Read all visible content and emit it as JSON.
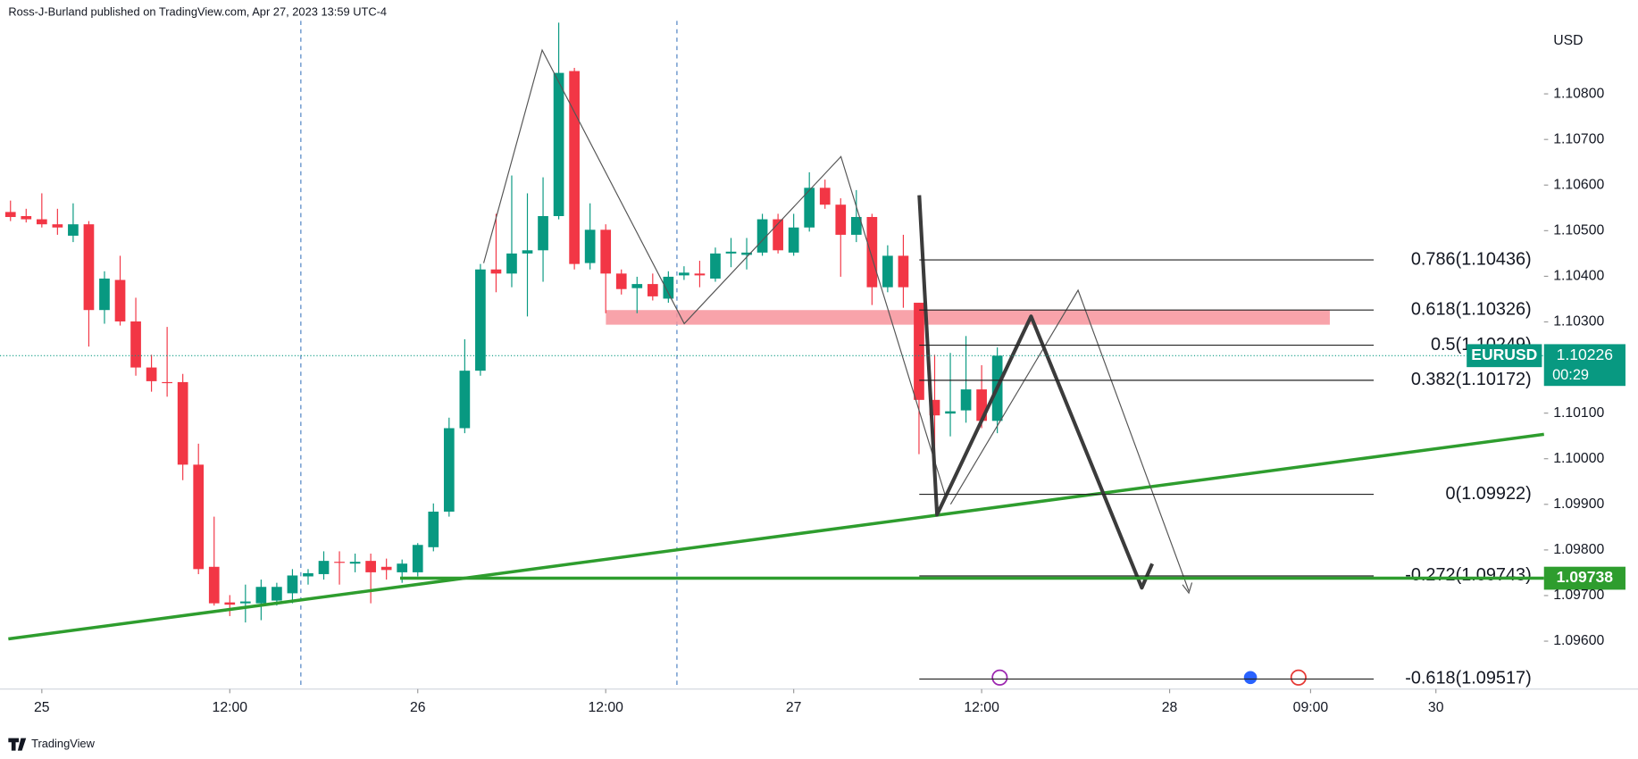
{
  "chart_data": {
    "type": "candlestick",
    "caption": "Ross-J-Burland published on TradingView.com, Apr 27, 2023 13:59 UTC-4",
    "currency": "USD",
    "symbol": "EURUSD",
    "last_price": 1.10226,
    "countdown": "00:29",
    "level_tag": 1.09738,
    "branding": "TradingView",
    "up_color": "#089981",
    "down_color": "#f23645",
    "level_color": "#2e9d2e",
    "grid": false,
    "x": [
      0,
      1,
      2,
      3,
      4,
      5,
      6,
      7,
      8,
      9,
      10,
      11,
      12,
      13,
      14,
      15,
      16,
      17,
      18,
      19,
      20,
      21,
      22,
      23,
      24,
      25,
      26,
      27,
      28,
      29,
      30,
      31,
      32,
      33,
      34,
      35,
      36,
      37,
      38,
      39,
      40,
      41,
      42,
      43,
      44,
      45,
      46,
      47,
      48,
      49,
      50,
      51,
      52,
      53,
      54,
      55,
      56,
      57,
      58,
      59,
      60,
      61,
      62,
      63
    ],
    "open": [
      1.10541,
      1.10532,
      1.10525,
      1.10514,
      1.10489,
      1.10514,
      1.10326,
      1.10392,
      1.10301,
      1.102,
      1.10168,
      1.10168,
      1.09987,
      1.09763,
      1.09685,
      1.09683,
      1.09683,
      1.09689,
      1.09705,
      1.09742,
      1.09747,
      1.09774,
      1.0977,
      1.09776,
      1.09763,
      1.09751,
      1.09751,
      1.09806,
      1.09884,
      1.10067,
      1.10193,
      1.10415,
      1.10406,
      1.1045,
      1.10457,
      1.10532,
      1.1085,
      1.10429,
      1.10502,
      1.10406,
      1.10374,
      1.10383,
      1.10351,
      1.10402,
      1.10406,
      1.10395,
      1.1045,
      1.10447,
      1.10452,
      1.10525,
      1.10452,
      1.10507,
      1.10594,
      1.10557,
      1.10491,
      1.1053,
      1.10376,
      1.10445,
      1.10342,
      1.10129,
      1.10099,
      1.10106,
      1.10152,
      1.10083
    ],
    "high": [
      1.10566,
      1.10548,
      1.10582,
      1.10548,
      1.1056,
      1.10521,
      1.10411,
      1.10445,
      1.10353,
      1.10228,
      1.10289,
      1.10186,
      1.10033,
      1.09873,
      1.09701,
      1.09724,
      1.09735,
      1.09728,
      1.09758,
      1.09758,
      1.09797,
      1.09797,
      1.09792,
      1.09792,
      1.09781,
      1.09779,
      1.09815,
      1.09902,
      1.1009,
      1.10262,
      1.10427,
      1.10537,
      1.10621,
      1.10582,
      1.10617,
      1.10956,
      1.10857,
      1.1056,
      1.10514,
      1.10415,
      1.10399,
      1.10406,
      1.10411,
      1.10422,
      1.10434,
      1.10463,
      1.10484,
      1.10484,
      1.10537,
      1.10537,
      1.10537,
      1.10628,
      1.10612,
      1.10571,
      1.10589,
      1.10537,
      1.10468,
      1.10491,
      1.10342,
      1.10228,
      1.10232,
      1.10269,
      1.10205,
      1.10244
    ],
    "low": [
      1.10521,
      1.10518,
      1.10507,
      1.10491,
      1.10475,
      1.10246,
      1.10296,
      1.10292,
      1.10182,
      1.10147,
      1.10136,
      1.09953,
      1.09747,
      1.09678,
      1.09655,
      1.09641,
      1.09646,
      1.09678,
      1.09683,
      1.09724,
      1.09735,
      1.09724,
      1.09751,
      1.09683,
      1.09735,
      1.09728,
      1.09742,
      1.09797,
      1.09873,
      1.10056,
      1.10182,
      1.10365,
      1.10376,
      1.10312,
      1.10388,
      1.10525,
      1.10415,
      1.10415,
      1.10319,
      1.1036,
      1.10319,
      1.10347,
      1.10342,
      1.10392,
      1.10376,
      1.10388,
      1.1042,
      1.10415,
      1.10445,
      1.1045,
      1.10445,
      1.10498,
      1.10548,
      1.10399,
      1.10475,
      1.10337,
      1.10365,
      1.10331,
      1.1001,
      1.0993,
      1.10049,
      1.10079,
      1.10067,
      1.10056
    ],
    "close": [
      1.1053,
      1.10525,
      1.10514,
      1.10507,
      1.10514,
      1.10326,
      1.10395,
      1.10301,
      1.102,
      1.1017,
      1.10166,
      1.09987,
      1.09758,
      1.09683,
      1.0968,
      1.09687,
      1.09719,
      1.09719,
      1.09744,
      1.09749,
      1.09776,
      1.09772,
      1.09774,
      1.09751,
      1.09756,
      1.0977,
      1.09811,
      1.09884,
      1.10067,
      1.10193,
      1.10415,
      1.10406,
      1.1045,
      1.10457,
      1.10532,
      1.10846,
      1.10427,
      1.10502,
      1.10406,
      1.10372,
      1.10383,
      1.10356,
      1.10399,
      1.10408,
      1.10402,
      1.1045,
      1.10454,
      1.10452,
      1.10525,
      1.10457,
      1.10507,
      1.10594,
      1.10557,
      1.10491,
      1.1053,
      1.10376,
      1.10445,
      1.10376,
      1.10129,
      1.10095,
      1.10104,
      1.10152,
      1.10083,
      1.10226
    ],
    "xlim": [
      -0.67,
      97.9
    ],
    "ylim": [
      1.09495,
      1.1096
    ],
    "xticks": [
      {
        "value": 2,
        "label": "25"
      },
      {
        "value": 14,
        "label": "12:00"
      },
      {
        "value": 26,
        "label": "26"
      },
      {
        "value": 38,
        "label": "12:00"
      },
      {
        "value": 50,
        "label": "27"
      },
      {
        "value": 62,
        "label": "12:00"
      },
      {
        "value": 74,
        "label": "28"
      },
      {
        "value": 83,
        "label": "09:00"
      },
      {
        "value": 91,
        "label": "30"
      }
    ],
    "yticks": [
      {
        "value": 1.096,
        "label": "1.09600"
      },
      {
        "value": 1.097,
        "label": "1.09700"
      },
      {
        "value": 1.098,
        "label": "1.09800"
      },
      {
        "value": 1.099,
        "label": "1.09900"
      },
      {
        "value": 1.1,
        "label": "1.10000"
      },
      {
        "value": 1.101,
        "label": "1.10100"
      },
      {
        "value": 1.103,
        "label": "1.10300"
      },
      {
        "value": 1.104,
        "label": "1.10400"
      },
      {
        "value": 1.105,
        "label": "1.10500"
      },
      {
        "value": 1.106,
        "label": "1.10600"
      },
      {
        "value": 1.107,
        "label": "1.10700"
      },
      {
        "value": 1.108,
        "label": "1.10800"
      }
    ],
    "fib_levels": [
      {
        "label": "0.786(1.10436)",
        "value": 1.10436
      },
      {
        "label": "0.618(1.10326)",
        "value": 1.10326
      },
      {
        "label": "0.5(1.10249)",
        "value": 1.10249
      },
      {
        "label": "0.382(1.10172)",
        "value": 1.10172
      },
      {
        "label": "0(1.09922)",
        "value": 1.09922
      },
      {
        "label": "-0.272(1.09743)",
        "value": 1.09743
      },
      {
        "label": "-0.618(1.09517)",
        "value": 1.09517
      }
    ]
  }
}
